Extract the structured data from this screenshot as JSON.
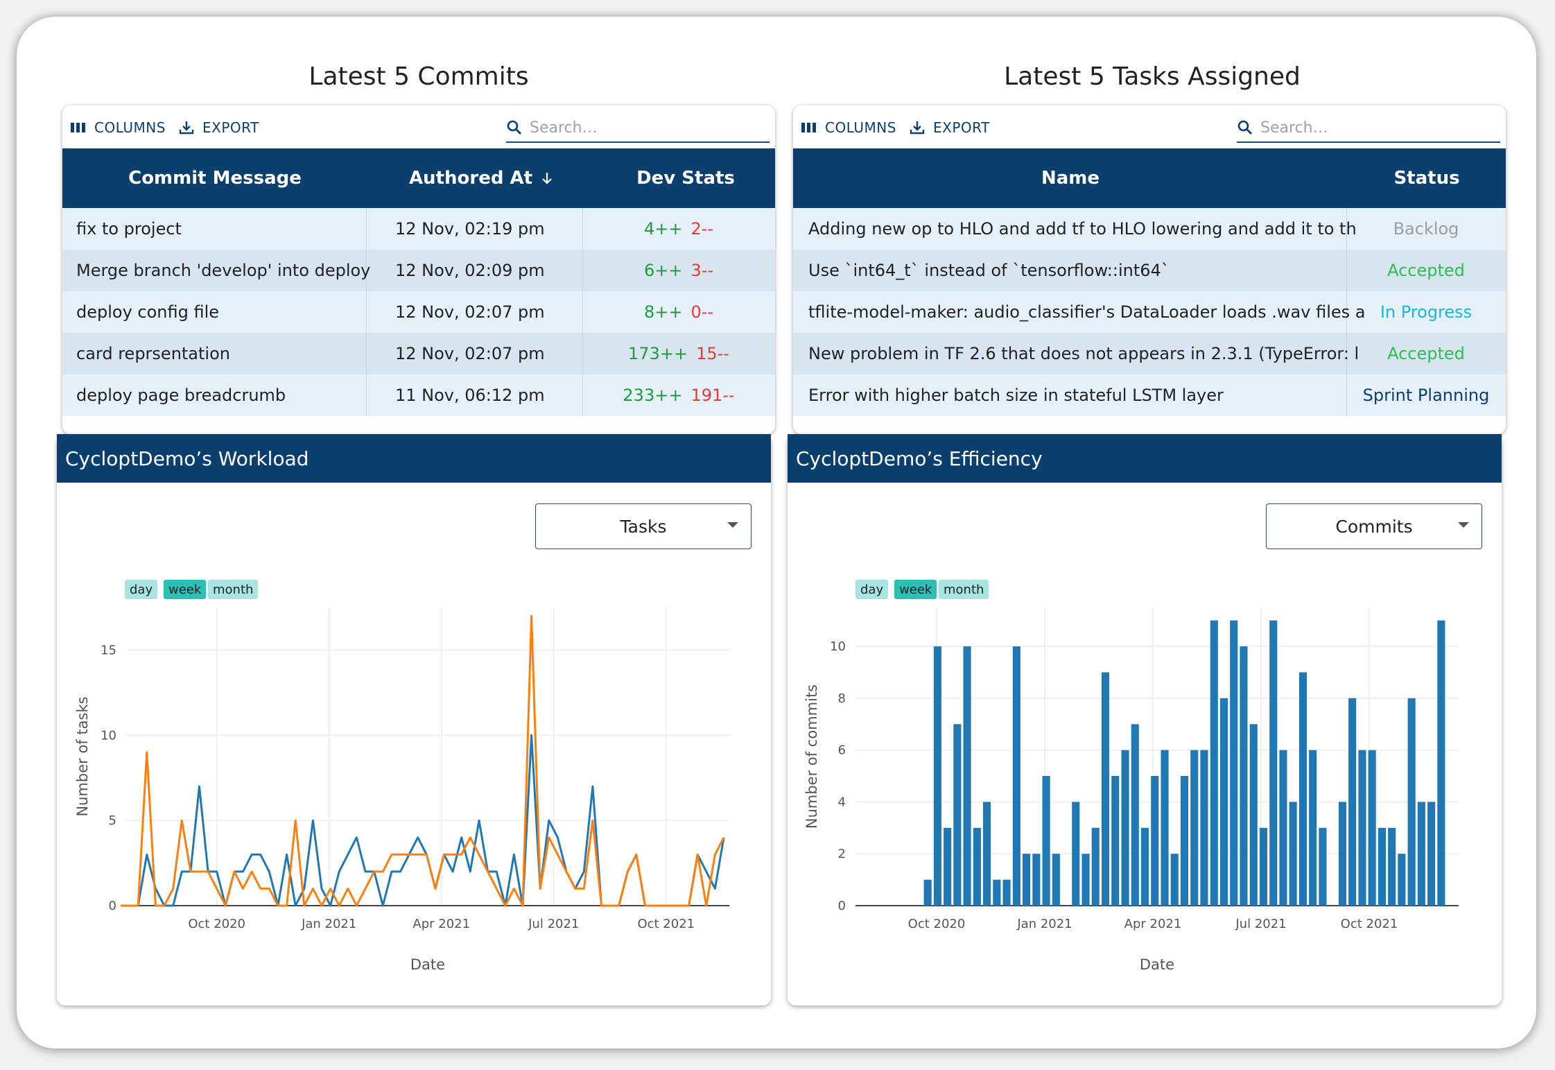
{
  "commits_panel": {
    "title": "Latest 5 Commits",
    "toolbar": {
      "columns_label": "COLUMNS",
      "export_label": "EXPORT",
      "search_placeholder": "Search…"
    },
    "headers": [
      "Commit Message",
      "Authored At",
      "Dev Stats"
    ],
    "rows": [
      {
        "message": "fix to project",
        "authored": "12 Nov, 02:19 pm",
        "added": "4++",
        "removed": "2--"
      },
      {
        "message": "Merge branch 'develop' into deploy",
        "authored": "12 Nov, 02:09 pm",
        "added": "6++",
        "removed": "3--"
      },
      {
        "message": "deploy config file",
        "authored": "12 Nov, 02:07 pm",
        "added": "8++",
        "removed": "0--"
      },
      {
        "message": "card reprsentation",
        "authored": "12 Nov, 02:07 pm",
        "added": "173++",
        "removed": "15--"
      },
      {
        "message": "deploy page breadcrumb",
        "authored": "11 Nov, 06:12 pm",
        "added": "233++",
        "removed": "191--"
      }
    ]
  },
  "tasks_panel": {
    "title": "Latest 5 Tasks Assigned",
    "toolbar": {
      "columns_label": "COLUMNS",
      "export_label": "EXPORT",
      "search_placeholder": "Search…"
    },
    "headers": [
      "Name",
      "Status"
    ],
    "rows": [
      {
        "name": "Adding new op to HLO and add tf to HLO lowering and add it to th",
        "status": "Backlog",
        "status_color": "#9e9e9e"
      },
      {
        "name": "Use `int64_t` instead of `tensorflow::int64`",
        "status": "Accepted",
        "status_color": "#2ebd4e"
      },
      {
        "name": "tflite-model-maker: audio_classifier's DataLoader loads .wav files a",
        "status": "In Progress",
        "status_color": "#18b8d6"
      },
      {
        "name": "New problem in TF 2.6 that does not appears in 2.3.1 (TypeError: l",
        "status": "Accepted",
        "status_color": "#2ebd4e"
      },
      {
        "name": "Error with higher batch size in stateful LSTM layer",
        "status": "Sprint Planning",
        "status_color": "#0b3f6e"
      }
    ]
  },
  "colors": {
    "navy": "#0b3f6e",
    "teal_active": "#2ebfb4",
    "teal_light": "#a8e4e2",
    "series_blue": "#1f77b4",
    "series_orange": "#ff7f0e"
  },
  "workload": {
    "title": "CycloptDemo’s Workload",
    "dropdown_value": "Tasks",
    "range_buttons": [
      "day",
      "week",
      "month"
    ],
    "active_range": "week"
  },
  "efficiency": {
    "title": "CycloptDemo’s Efficiency",
    "dropdown_value": "Commits",
    "range_buttons": [
      "day",
      "week",
      "month"
    ],
    "active_range": "week"
  },
  "chart_data": [
    {
      "type": "line",
      "title": "CycloptDemo’s Workload",
      "xlabel": "Date",
      "ylabel": "Number of tasks",
      "x_ticks": [
        "Oct 2020",
        "Jan 2021",
        "Apr 2021",
        "Jul 2021",
        "Oct 2021"
      ],
      "y_ticks": [
        0,
        5,
        10,
        15
      ],
      "ylim": [
        0,
        17.5
      ],
      "x_start_week_offset": -8,
      "series": [
        {
          "name": "blue",
          "color": "#1f77b4",
          "values": [
            0,
            0,
            0,
            3,
            1,
            0,
            0,
            2,
            2,
            7,
            2,
            2,
            0,
            2,
            2,
            3,
            3,
            2,
            0,
            3,
            0,
            1,
            5,
            1,
            0,
            2,
            3,
            4,
            2,
            2,
            0,
            2,
            2,
            3,
            4,
            3,
            1,
            3,
            2,
            4,
            2,
            5,
            2,
            2,
            0,
            3,
            0,
            10,
            1,
            5,
            4,
            2,
            1,
            2,
            7,
            0,
            0,
            0,
            2,
            3,
            0,
            0,
            0,
            0,
            0,
            0,
            3,
            2,
            1,
            4
          ]
        },
        {
          "name": "orange",
          "color": "#ff7f0e",
          "values": [
            0,
            0,
            0,
            9,
            0,
            0,
            1,
            5,
            2,
            2,
            2,
            1,
            0,
            2,
            1,
            2,
            1,
            1,
            0,
            0,
            5,
            0,
            1,
            0,
            1,
            0,
            1,
            0,
            1,
            2,
            2,
            3,
            3,
            3,
            3,
            3,
            1,
            3,
            3,
            3,
            4,
            3,
            2,
            1,
            0,
            1,
            0,
            17,
            1,
            4,
            3,
            2,
            1,
            1,
            5,
            0,
            0,
            0,
            2,
            3,
            0,
            0,
            0,
            0,
            0,
            0,
            3,
            0,
            3,
            4
          ]
        }
      ]
    },
    {
      "type": "bar",
      "title": "CycloptDemo’s Efficiency",
      "xlabel": "Date",
      "ylabel": "Number of commits",
      "x_ticks": [
        "Oct 2020",
        "Jan 2021",
        "Apr 2021",
        "Jul 2021",
        "Oct 2021"
      ],
      "y_ticks": [
        0,
        2,
        4,
        6,
        8,
        10
      ],
      "ylim": [
        0,
        11.5
      ],
      "color": "#1f77b4",
      "values": [
        1,
        10,
        3,
        7,
        10,
        3,
        4,
        1,
        1,
        10,
        2,
        2,
        5,
        2,
        0,
        4,
        2,
        3,
        9,
        5,
        6,
        7,
        3,
        5,
        6,
        2,
        5,
        6,
        6,
        11,
        8,
        11,
        10,
        7,
        3,
        11,
        6,
        4,
        9,
        6,
        3,
        0,
        4,
        8,
        6,
        6,
        3,
        3,
        2,
        8,
        4,
        4,
        11
      ]
    }
  ]
}
